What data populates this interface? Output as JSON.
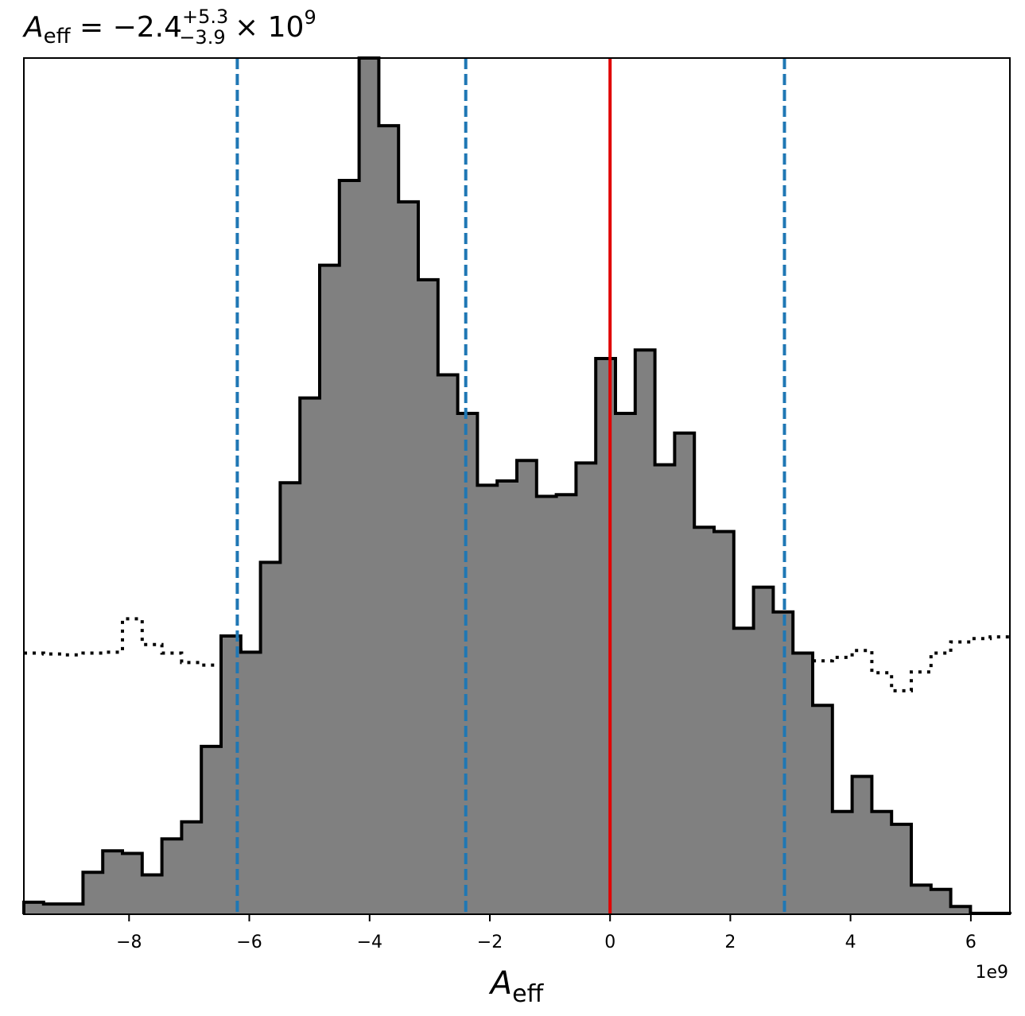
{
  "chart_data": {
    "type": "histogram",
    "title": {
      "symbol": "A",
      "subscript": "eff",
      "equals": " = −2.4",
      "sup": "+5.3",
      "sub": "−3.9",
      "times": " × 10",
      "exp": "9"
    },
    "xlabel": {
      "symbol": "A",
      "subscript": "eff"
    },
    "x_offset_text": "1e9",
    "xlim": [
      -9.75,
      6.65
    ],
    "ylim": [
      0,
      1.0
    ],
    "x_ticks": [
      {
        "value": -8,
        "label": "−8"
      },
      {
        "value": -6,
        "label": "−6"
      },
      {
        "value": -4,
        "label": "−4"
      },
      {
        "value": -2,
        "label": "−2"
      },
      {
        "value": 0,
        "label": "0"
      },
      {
        "value": 2,
        "label": "2"
      },
      {
        "value": 4,
        "label": "4"
      },
      {
        "value": 6,
        "label": "6"
      }
    ],
    "posterior": {
      "color": "#808080",
      "edge_color": "#000000",
      "bin_edges": [
        -9.75,
        -9.422,
        -9.094,
        -8.766,
        -8.438,
        -8.11,
        -7.782,
        -7.454,
        -7.126,
        -6.798,
        -6.47,
        -6.142,
        -5.814,
        -5.486,
        -5.158,
        -4.83,
        -4.502,
        -4.174,
        -3.846,
        -3.518,
        -3.19,
        -2.862,
        -2.534,
        -2.206,
        -1.878,
        -1.55,
        -1.222,
        -0.894,
        -0.566,
        -0.238,
        0.09,
        0.418,
        0.746,
        1.074,
        1.402,
        1.73,
        2.058,
        2.386,
        2.714,
        3.042,
        3.37,
        3.698,
        4.026,
        4.354,
        4.682,
        5.01,
        5.338,
        5.666,
        5.994,
        6.322,
        6.65
      ],
      "values": [
        0.014,
        0.012,
        0.012,
        0.049,
        0.074,
        0.071,
        0.046,
        0.088,
        0.108,
        0.196,
        0.325,
        0.306,
        0.411,
        0.504,
        0.603,
        0.758,
        0.857,
        1.0,
        0.921,
        0.832,
        0.741,
        0.63,
        0.585,
        0.501,
        0.506,
        0.53,
        0.488,
        0.49,
        0.527,
        0.649,
        0.585,
        0.659,
        0.525,
        0.562,
        0.452,
        0.447,
        0.334,
        0.382,
        0.353,
        0.305,
        0.244,
        0.12,
        0.161,
        0.12,
        0.105,
        0.034,
        0.029,
        0.009,
        0.001,
        0.001
      ]
    },
    "prior": {
      "style": "dotted",
      "color": "#000000",
      "bin_edges": [
        -9.75,
        -9.422,
        -9.094,
        -8.766,
        -8.438,
        -8.11,
        -7.782,
        -7.454,
        -7.126,
        -6.798,
        -6.47,
        -6.142,
        -5.814,
        -5.486,
        -5.158,
        -4.83,
        -4.502,
        -4.174,
        -3.846,
        -3.518,
        -3.19,
        -2.862,
        -2.534,
        -2.206,
        -1.878,
        -1.55,
        -1.222,
        -0.894,
        -0.566,
        -0.238,
        0.09,
        0.418,
        0.746,
        1.074,
        1.402,
        1.73,
        2.058,
        2.386,
        2.714,
        3.042,
        3.37,
        3.698,
        4.026,
        4.354,
        4.682,
        5.01,
        5.338,
        5.666,
        5.994,
        6.322,
        6.65
      ],
      "values": [
        0.305,
        0.304,
        0.303,
        0.305,
        0.306,
        0.345,
        0.315,
        0.305,
        0.294,
        0.291,
        0.314,
        0.3,
        0.285,
        0.287,
        0.308,
        0.285,
        0.29,
        0.286,
        0.259,
        0.268,
        0.285,
        0.269,
        0.262,
        0.286,
        0.285,
        0.282,
        0.296,
        0.322,
        0.281,
        0.288,
        0.284,
        0.251,
        0.261,
        0.259,
        0.268,
        0.273,
        0.311,
        0.303,
        0.302,
        0.283,
        0.296,
        0.3,
        0.308,
        0.282,
        0.261,
        0.283,
        0.305,
        0.318,
        0.322,
        0.324
      ]
    },
    "vlines": [
      {
        "x": -6.2,
        "color": "#1f77b4",
        "style": "dashed"
      },
      {
        "x": -2.4,
        "color": "#1f77b4",
        "style": "dashed"
      },
      {
        "x": 0.0,
        "color": "#e00000",
        "style": "solid"
      },
      {
        "x": 2.9,
        "color": "#1f77b4",
        "style": "dashed"
      }
    ],
    "grid": false
  }
}
